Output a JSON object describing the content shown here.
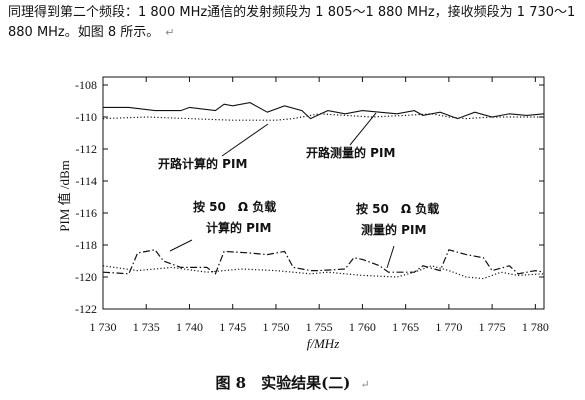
{
  "intro_text": "同理得到第二个频段：1 800 MHz通信的发射频段为 1 805～1 880 MHz，接收频段为 1 730～1 880 MHz。如图 8 所示。",
  "intro_mark": "↵",
  "caption": "图 8　实验结果(二)",
  "caption_mark": "↵",
  "chart_data": {
    "type": "line",
    "xlabel": "f/MHz",
    "ylabel": "PIM 值 /dBm",
    "xlim": [
      1730,
      1781
    ],
    "ylim": [
      -122,
      -107.5
    ],
    "x_ticks": [
      "1 730",
      "1 735",
      "1 740",
      "1 745",
      "1 750",
      "1 755",
      "1 760",
      "1 765",
      "1 770",
      "1 775",
      "1 780"
    ],
    "x_tick_values": [
      1730,
      1735,
      1740,
      1745,
      1750,
      1755,
      1760,
      1765,
      1770,
      1775,
      1780
    ],
    "y_ticks": [
      "-108",
      "-110",
      "-112",
      "-114",
      "-116",
      "-118",
      "-120",
      "-122"
    ],
    "y_tick_values": [
      -108,
      -110,
      -112,
      -114,
      -116,
      -118,
      -120,
      -122
    ],
    "annotations": [
      "开路计算的 PIM",
      "开路测量的 PIM",
      "按 50　Ω 负载",
      "计算的 PIM",
      "按 50　Ω 负载",
      "测量的 PIM"
    ],
    "series": [
      {
        "style": "solid",
        "x": [
          1730,
          1733,
          1736,
          1739,
          1740,
          1743,
          1744,
          1745,
          1747,
          1749,
          1751,
          1753,
          1754,
          1756,
          1758,
          1760,
          1762,
          1764,
          1766,
          1767,
          1769,
          1771,
          1773,
          1775,
          1777,
          1779,
          1781
        ],
        "y": [
          -109.4,
          -109.4,
          -109.6,
          -109.6,
          -109.4,
          -109.6,
          -109.2,
          -109.3,
          -109.1,
          -109.7,
          -109.3,
          -109.6,
          -110.1,
          -109.6,
          -109.8,
          -109.6,
          -109.7,
          -109.8,
          -109.6,
          -109.9,
          -109.7,
          -110.1,
          -109.7,
          -110.0,
          -109.8,
          -109.9,
          -109.8
        ]
      },
      {
        "style": "dotted",
        "x": [
          1730,
          1735,
          1740,
          1745,
          1750,
          1752,
          1755,
          1758,
          1761,
          1765,
          1768,
          1770,
          1772,
          1775,
          1778,
          1781
        ],
        "y": [
          -110.1,
          -110.0,
          -110.1,
          -110.2,
          -110.2,
          -110.1,
          -109.8,
          -109.9,
          -110.0,
          -109.9,
          -109.8,
          -110.0,
          -110.1,
          -110.0,
          -110.0,
          -110.0
        ]
      },
      {
        "style": "dashdot",
        "x": [
          1730,
          1733,
          1734,
          1736,
          1737,
          1739,
          1742,
          1743,
          1744,
          1747,
          1749,
          1751,
          1752,
          1754,
          1755,
          1758,
          1759,
          1760,
          1762,
          1763,
          1766,
          1767,
          1769,
          1770,
          1772,
          1774,
          1775,
          1777,
          1778,
          1780,
          1781
        ],
        "y": [
          -119.7,
          -119.8,
          -118.5,
          -118.3,
          -119.0,
          -119.4,
          -119.4,
          -119.8,
          -118.4,
          -118.5,
          -118.6,
          -118.4,
          -119.4,
          -119.6,
          -119.6,
          -119.5,
          -118.8,
          -118.9,
          -119.3,
          -119.7,
          -119.7,
          -119.3,
          -119.6,
          -118.3,
          -118.6,
          -118.8,
          -119.6,
          -119.3,
          -119.8,
          -119.6,
          -119.7
        ]
      },
      {
        "style": "dotted",
        "x": [
          1730,
          1734,
          1738,
          1742,
          1746,
          1750,
          1754,
          1756,
          1760,
          1764,
          1766,
          1768,
          1770,
          1772,
          1774,
          1776,
          1778,
          1781
        ],
        "y": [
          -119.3,
          -119.6,
          -119.4,
          -119.7,
          -119.5,
          -119.6,
          -119.8,
          -119.7,
          -119.9,
          -120.0,
          -119.7,
          -119.3,
          -119.6,
          -120.0,
          -120.1,
          -119.7,
          -119.9,
          -119.8
        ]
      }
    ]
  }
}
